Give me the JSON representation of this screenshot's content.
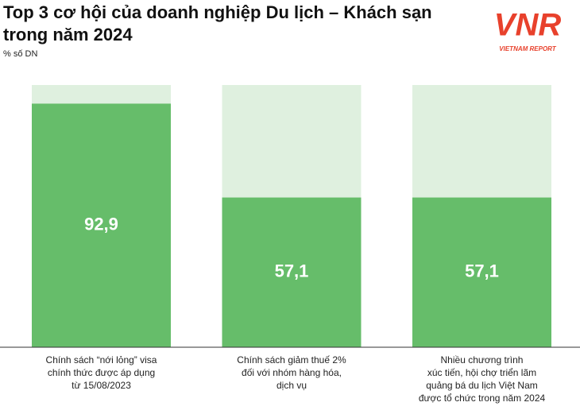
{
  "chart_data": {
    "type": "bar",
    "title": "Top 3 cơ hội của doanh nghiệp Du lịch – Khách sạn trong năm 2024",
    "subtitle": "% số DN",
    "logo": "VNR",
    "logo_caption": "VIETNAM REPORT",
    "categories": [
      "Chính sách “nới lỏng” visa\nchính thức được áp dụng\ntừ 15/08/2023",
      "Chính sách giảm thuế 2%\nđối với nhóm hàng hóa,\ndịch vụ",
      "Nhiều chương trình\nxúc tiến, hội chợ triển lãm\nquảng bá du lịch Việt Nam\nđược tổ chức trong năm 2024"
    ],
    "values": [
      92.9,
      57.1,
      57.1
    ],
    "value_labels": [
      "92,9",
      "57,1",
      "57,1"
    ],
    "color": "#66bd6a",
    "background_color": "#dff0df",
    "ylim": [
      0,
      100
    ]
  }
}
